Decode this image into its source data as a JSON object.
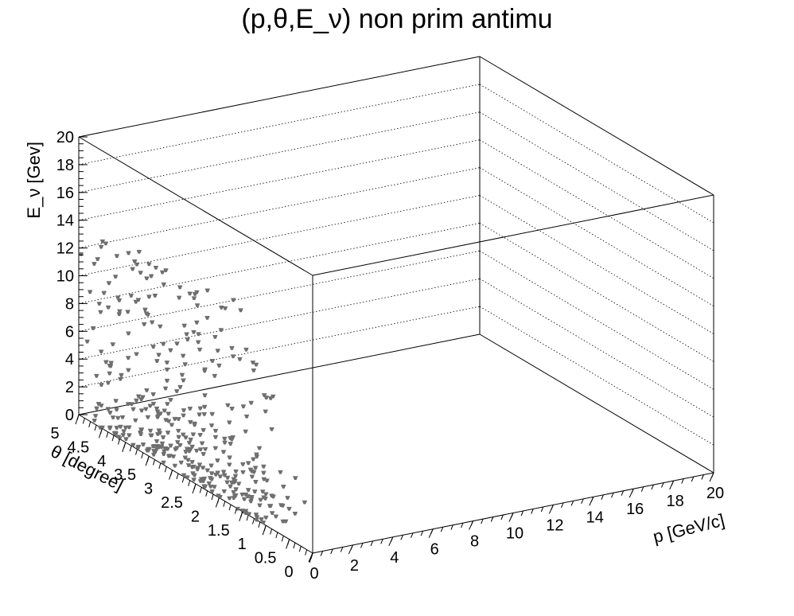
{
  "chart_data": {
    "type": "scatter",
    "title": "(p,θ,E_ν) non prim antimu",
    "xlabel": "p [GeV/c]",
    "ylabel": "θ [degree]",
    "zlabel": "E_ν [Gev]",
    "xlim": [
      0,
      20
    ],
    "ylim": [
      0,
      5
    ],
    "zlim": [
      0,
      20
    ],
    "x_ticks": [
      "0",
      "2",
      "4",
      "6",
      "8",
      "10",
      "12",
      "14",
      "16",
      "18",
      "20"
    ],
    "y_ticks": [
      "0",
      "0.5",
      "1",
      "1.5",
      "2",
      "2.5",
      "3",
      "3.5",
      "4",
      "4.5",
      "5"
    ],
    "z_ticks": [
      "0",
      "2",
      "4",
      "6",
      "8",
      "10",
      "12",
      "14",
      "16",
      "18",
      "20"
    ],
    "marker_color": "#6f6f6f",
    "grid": "dotted on back walls",
    "points_description_note_free": true
  }
}
